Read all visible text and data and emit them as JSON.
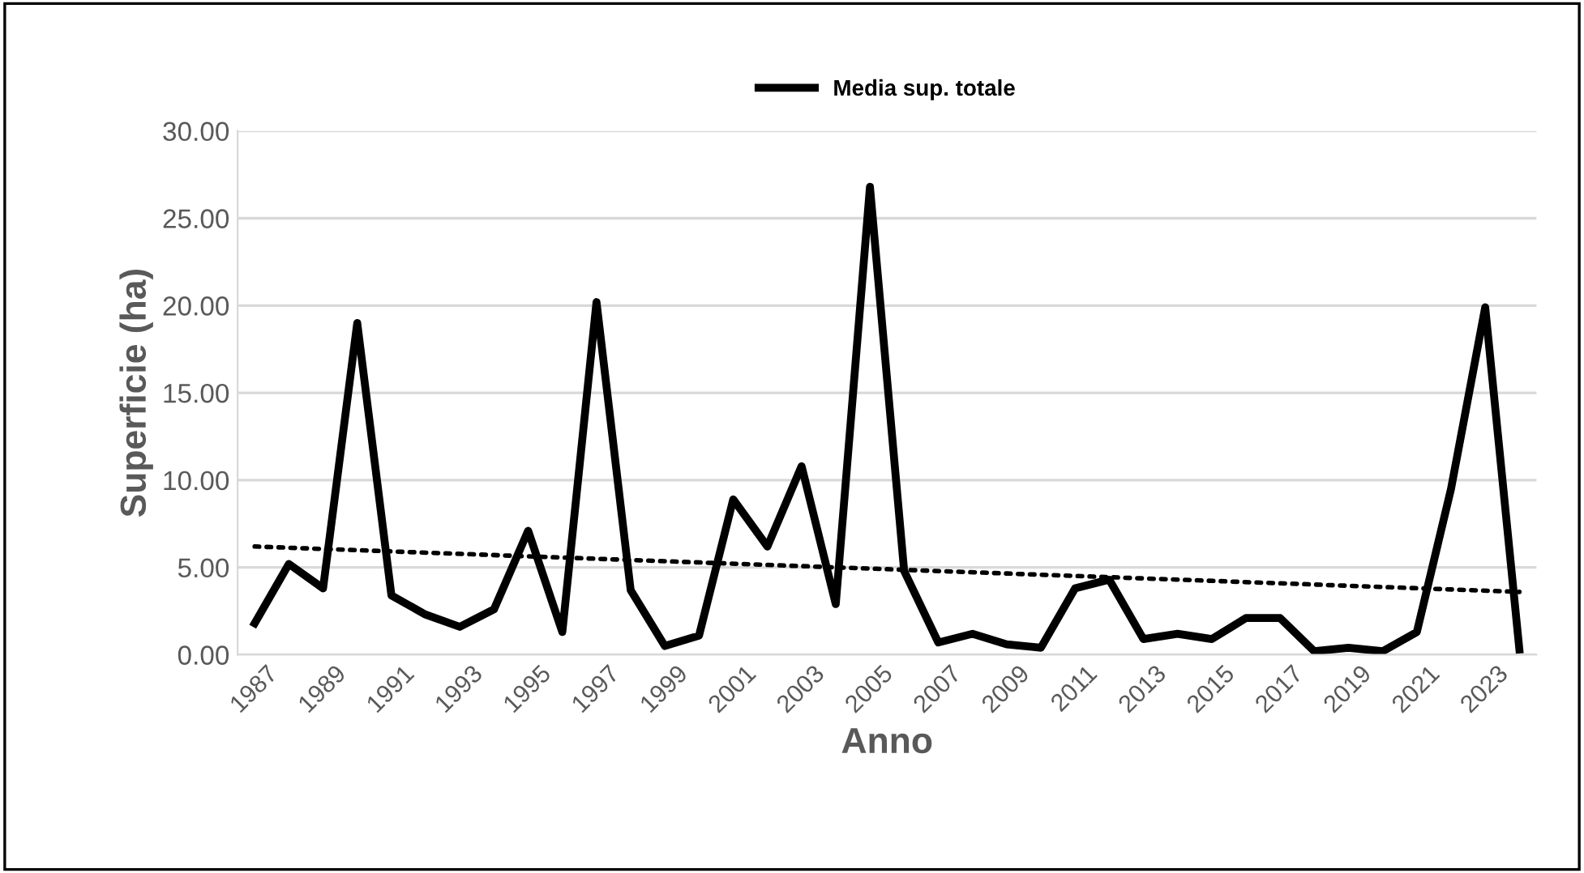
{
  "chart_data": {
    "type": "line",
    "xlabel": "Anno",
    "ylabel": "Superficie (ha)",
    "x": [
      1987,
      1988,
      1989,
      1990,
      1991,
      1992,
      1993,
      1994,
      1995,
      1996,
      1997,
      1998,
      1999,
      2000,
      2001,
      2002,
      2003,
      2004,
      2005,
      2006,
      2007,
      2008,
      2009,
      2010,
      2011,
      2012,
      2013,
      2014,
      2015,
      2016,
      2017,
      2018,
      2019,
      2020,
      2021,
      2022,
      2023,
      2024
    ],
    "series": [
      {
        "name": "Media sup. totale",
        "color": "#000000",
        "line_style": "solid",
        "values": [
          1.8,
          5.2,
          3.8,
          19.0,
          3.4,
          2.3,
          1.6,
          2.6,
          7.1,
          1.3,
          20.2,
          3.7,
          0.5,
          1.1,
          8.9,
          6.2,
          10.8,
          2.9,
          26.8,
          4.8,
          0.7,
          1.2,
          0.6,
          0.4,
          3.8,
          4.3,
          0.9,
          1.2,
          0.9,
          2.1,
          2.1,
          0.2,
          0.4,
          0.2,
          1.3,
          9.5,
          19.9,
          0.3
        ]
      },
      {
        "type": "line",
        "color": "#000000",
        "line_style": "dotted",
        "x": [
          1987,
          2024
        ],
        "values": [
          6.2,
          3.6
        ]
      }
    ],
    "xlim": [
      1986.5,
      2024.5
    ],
    "xticks": [
      1987,
      1989,
      1991,
      1993,
      1995,
      1997,
      1999,
      2001,
      2003,
      2005,
      2007,
      2009,
      2011,
      2013,
      2015,
      2017,
      2019,
      2021,
      2023
    ],
    "ylim": [
      0,
      30
    ],
    "yticks": [
      {
        "value": 0,
        "label": "0.00"
      },
      {
        "value": 5,
        "label": "5.00"
      },
      {
        "value": 10,
        "label": "10.00"
      },
      {
        "value": 15,
        "label": "15.00"
      },
      {
        "value": 20,
        "label": "20.00"
      },
      {
        "value": 25,
        "label": "25.00"
      },
      {
        "value": 30,
        "label": "30.00"
      }
    ],
    "grid": "y",
    "legend": "top",
    "marker": "none"
  }
}
